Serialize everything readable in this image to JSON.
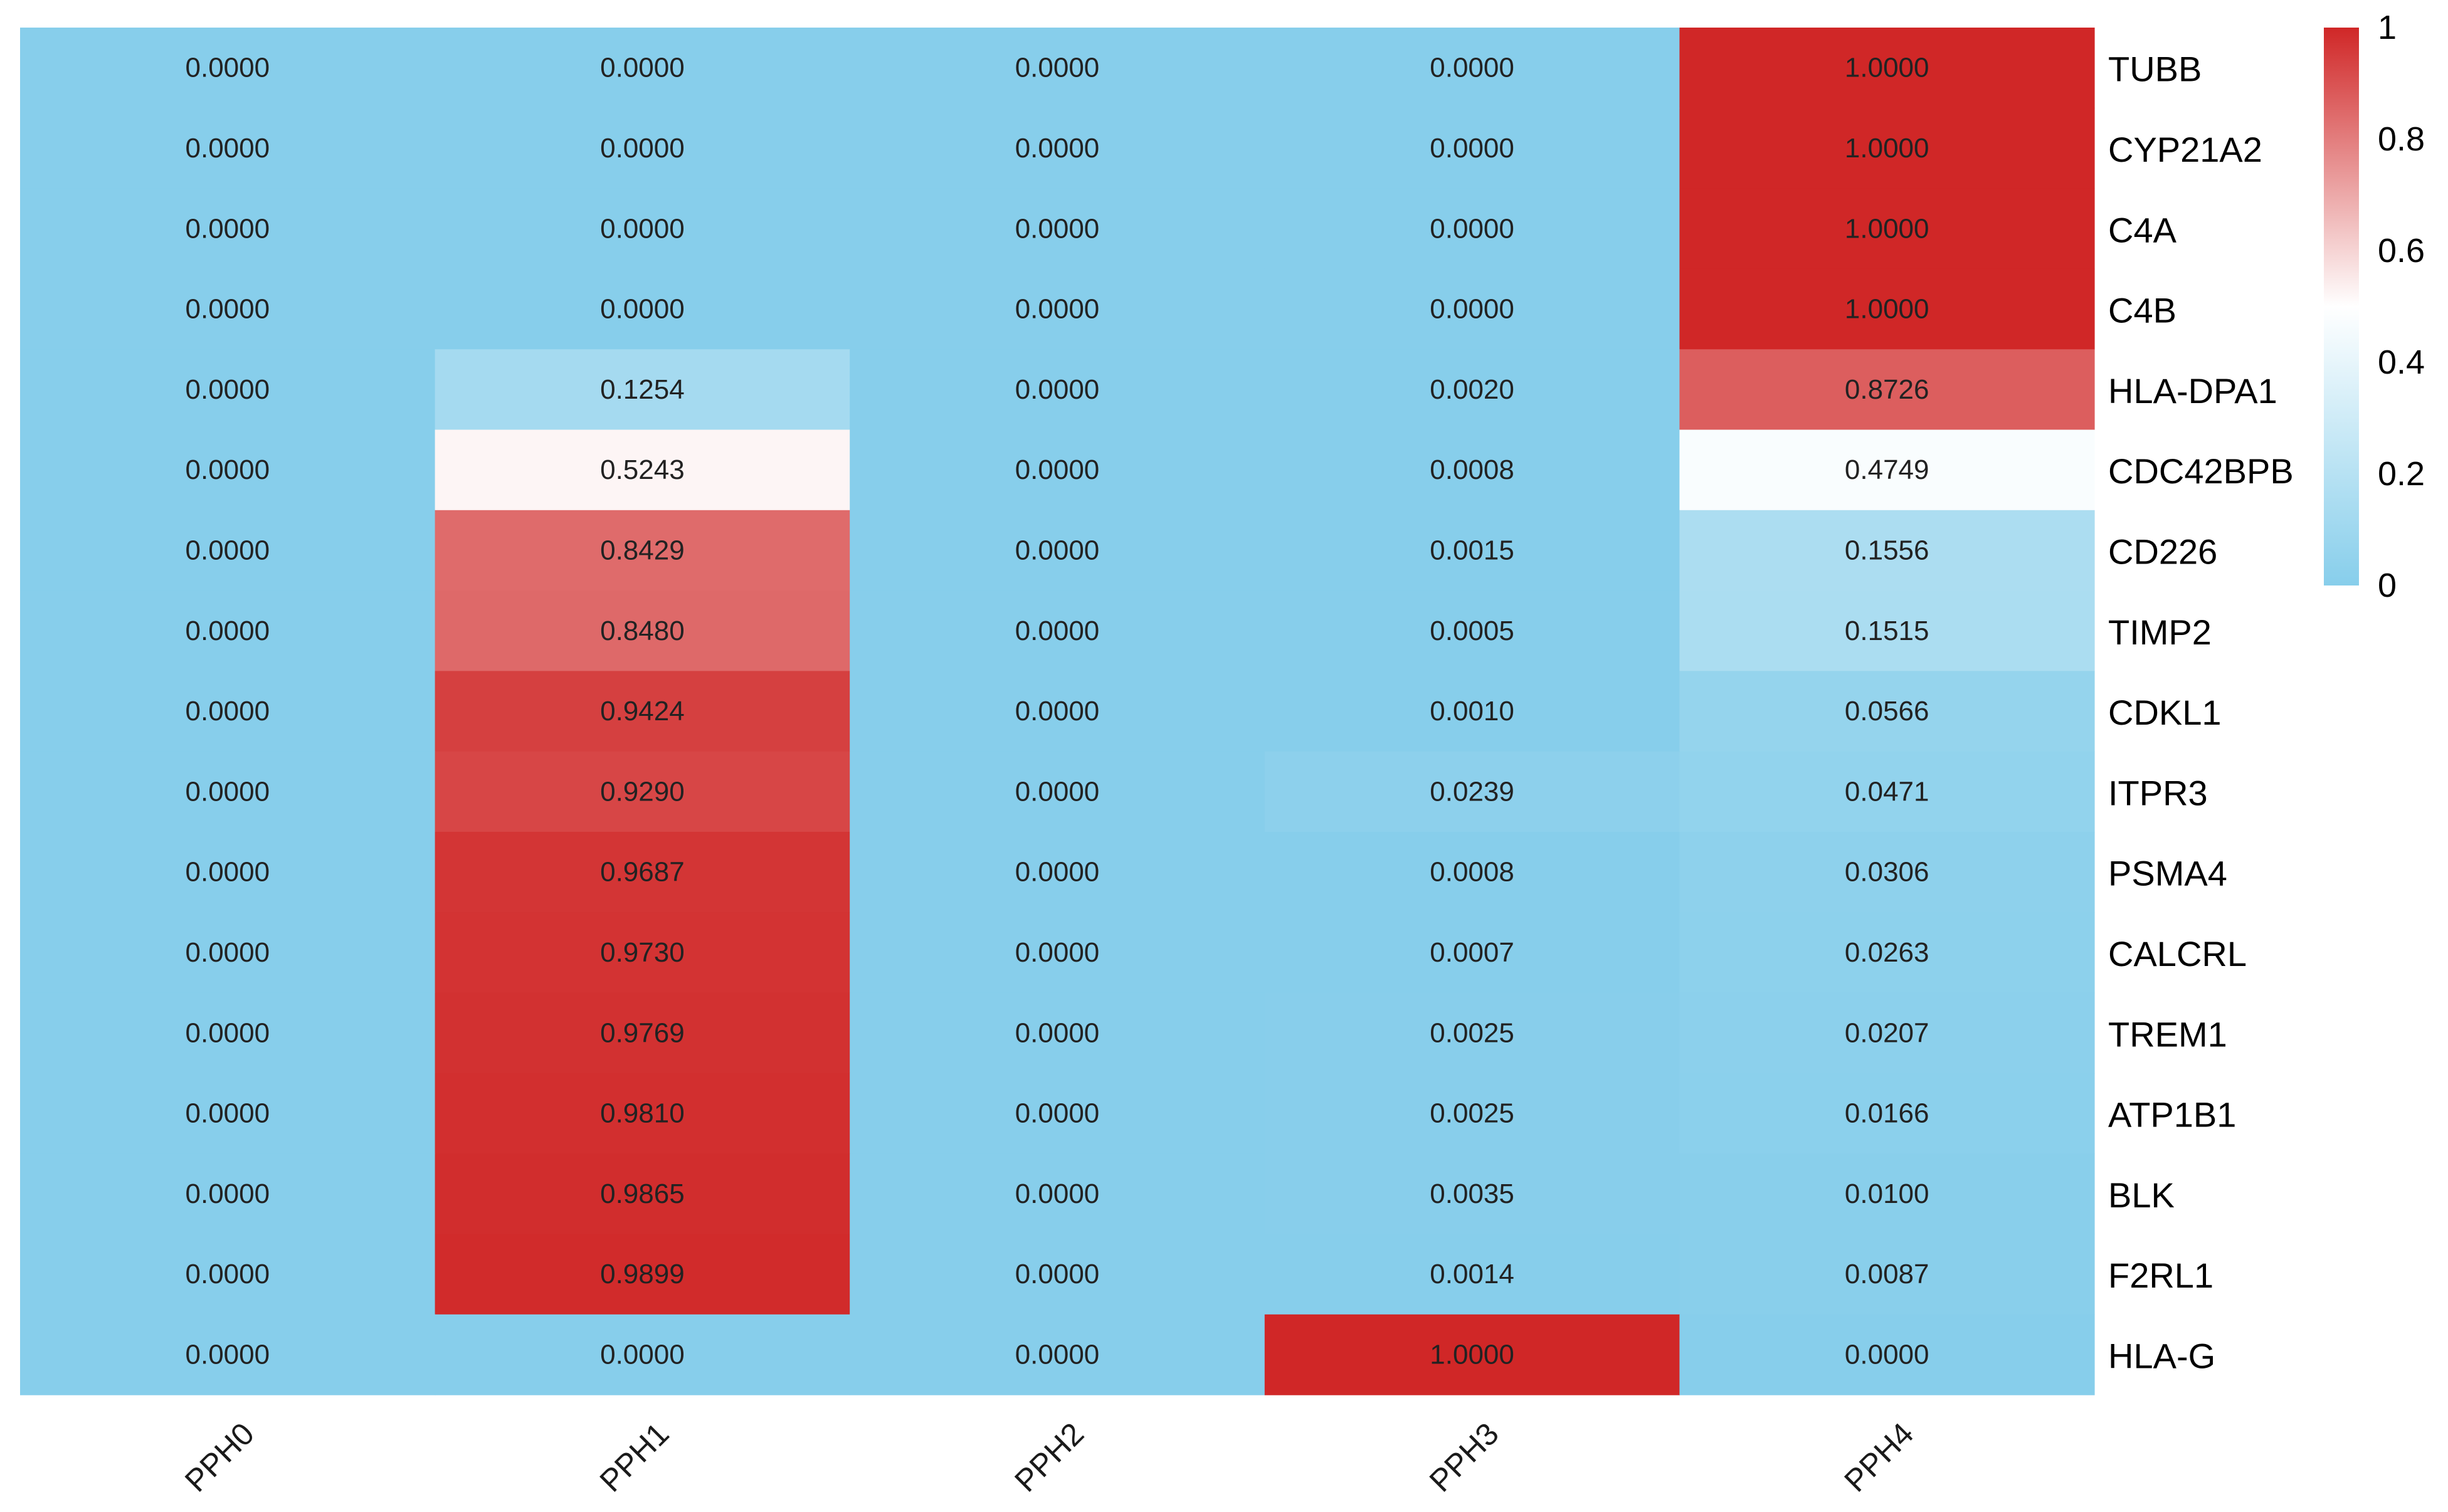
{
  "chart_data": {
    "type": "heatmap",
    "title": "",
    "columns": [
      "PPH0",
      "PPH1",
      "PPH2",
      "PPH3",
      "PPH4"
    ],
    "rows": [
      "TUBB",
      "CYP21A2",
      "C4A",
      "C4B",
      "HLA-DPA1",
      "CDC42BPB",
      "CD226",
      "TIMP2",
      "CDKL1",
      "ITPR3",
      "PSMA4",
      "CALCRL",
      "TREM1",
      "ATP1B1",
      "BLK",
      "F2RL1",
      "HLA-G"
    ],
    "values": [
      [
        0.0,
        0.0,
        0.0,
        0.0,
        1.0
      ],
      [
        0.0,
        0.0,
        0.0,
        0.0,
        1.0
      ],
      [
        0.0,
        0.0,
        0.0,
        0.0,
        1.0
      ],
      [
        0.0,
        0.0,
        0.0,
        0.0,
        1.0
      ],
      [
        0.0,
        0.1254,
        0.0,
        0.002,
        0.8726
      ],
      [
        0.0,
        0.5243,
        0.0,
        0.0008,
        0.4749
      ],
      [
        0.0,
        0.8429,
        0.0,
        0.0015,
        0.1556
      ],
      [
        0.0,
        0.848,
        0.0,
        0.0005,
        0.1515
      ],
      [
        0.0,
        0.9424,
        0.0,
        0.001,
        0.0566
      ],
      [
        0.0,
        0.929,
        0.0,
        0.0239,
        0.0471
      ],
      [
        0.0,
        0.9687,
        0.0,
        0.0008,
        0.0306
      ],
      [
        0.0,
        0.973,
        0.0,
        0.0007,
        0.0263
      ],
      [
        0.0,
        0.9769,
        0.0,
        0.0025,
        0.0207
      ],
      [
        0.0,
        0.981,
        0.0,
        0.0025,
        0.0166
      ],
      [
        0.0,
        0.9865,
        0.0,
        0.0035,
        0.01
      ],
      [
        0.0,
        0.9899,
        0.0,
        0.0014,
        0.0087
      ],
      [
        0.0,
        0.0,
        0.0,
        1.0,
        0.0
      ]
    ],
    "value_format": "4 decimals",
    "color_scale": {
      "low": "#87CEEB",
      "mid": "#FFFFFF",
      "high": "#D02727",
      "mid_value": 0.5
    },
    "legend": {
      "position": "top-right",
      "range": [
        0,
        1
      ],
      "ticks": [
        0,
        0.2,
        0.4,
        0.6,
        0.8,
        1
      ],
      "tick_labels": [
        "0",
        "0.2",
        "0.4",
        "0.6",
        "0.8",
        "1"
      ]
    }
  }
}
